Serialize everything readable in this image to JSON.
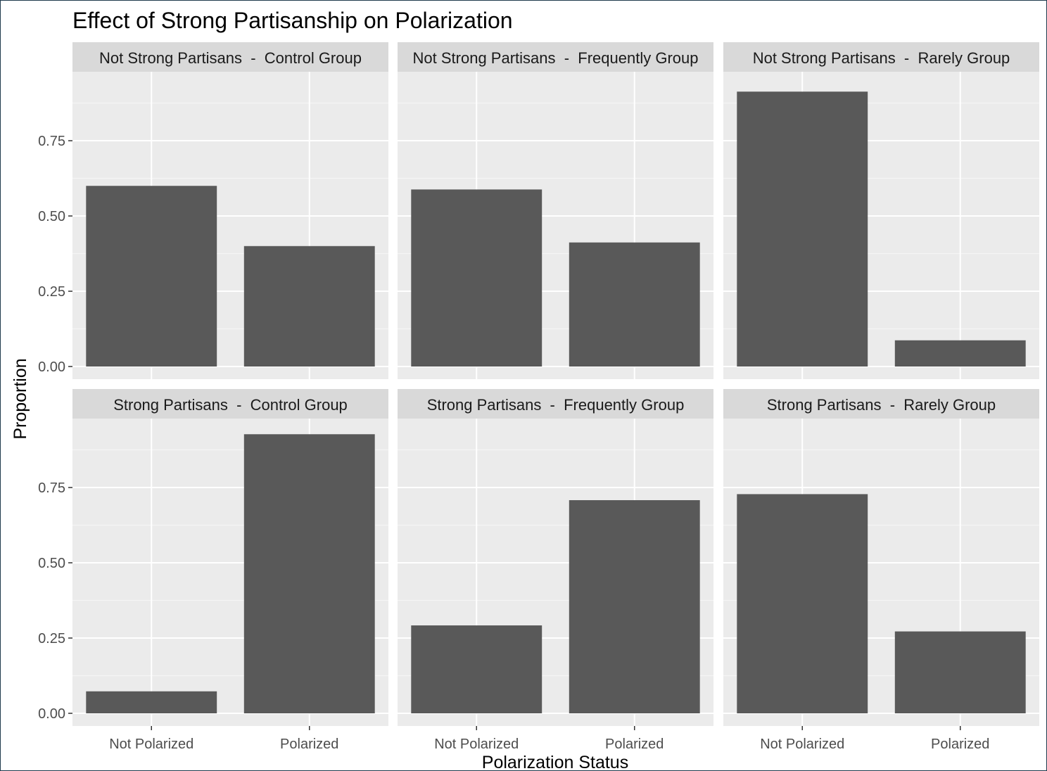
{
  "chart_data": {
    "type": "bar",
    "title": "Effect of Strong Partisanship on Polarization",
    "xlabel": "Polarization Status",
    "ylabel": "Proportion",
    "categories": [
      "Not Polarized",
      "Polarized"
    ],
    "ylim": [
      0,
      0.965
    ],
    "yticks": [
      0,
      0.25,
      0.5,
      0.75
    ],
    "ytick_labels": [
      "0.00",
      "0.25",
      "0.50",
      "0.75"
    ],
    "bar_color": "#595959",
    "panel_background": "#ebebeb",
    "strip_background": "#d9d9d9",
    "grid": true,
    "layout": "facet 2 rows x 3 columns",
    "panels": [
      {
        "label": "Not Strong Partisans  -  Control Group",
        "values": [
          0.6,
          0.4
        ]
      },
      {
        "label": "Not Strong Partisans  -  Frequently Group",
        "values": [
          0.588,
          0.412
        ]
      },
      {
        "label": "Not Strong Partisans  -  Rarely Group",
        "values": [
          0.913,
          0.087
        ]
      },
      {
        "label": "Strong Partisans  -  Control Group",
        "values": [
          0.073,
          0.927
        ]
      },
      {
        "label": "Strong Partisans  -  Frequently Group",
        "values": [
          0.292,
          0.708
        ]
      },
      {
        "label": "Strong Partisans  -  Rarely Group",
        "values": [
          0.728,
          0.272
        ]
      }
    ]
  }
}
